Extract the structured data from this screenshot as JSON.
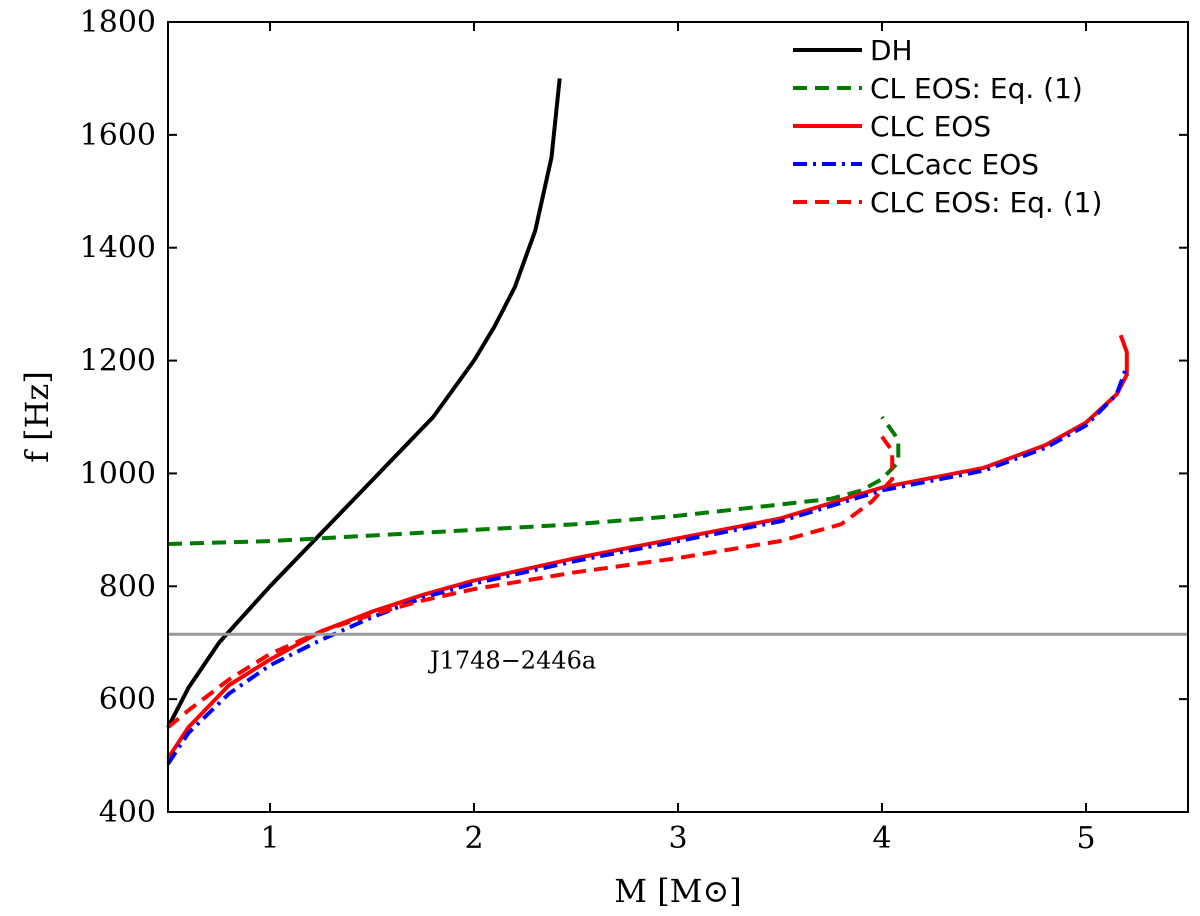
{
  "chart_data": {
    "type": "line",
    "title": "",
    "xlabel": "M [M⊙]",
    "ylabel": "f [Hz]",
    "xlim": [
      0.5,
      5.5
    ],
    "ylim": [
      400,
      1800
    ],
    "xticks": [
      1,
      2,
      3,
      4,
      5
    ],
    "yticks": [
      400,
      600,
      800,
      1000,
      1200,
      1400,
      1600,
      1800
    ],
    "legend_position": "top-right",
    "series": [
      {
        "name": "DH",
        "color": "#000000",
        "style": "solid",
        "points": [
          [
            0.5,
            550
          ],
          [
            0.6,
            620
          ],
          [
            0.75,
            700
          ],
          [
            0.9,
            760
          ],
          [
            1.0,
            800
          ],
          [
            1.2,
            875
          ],
          [
            1.4,
            950
          ],
          [
            1.6,
            1025
          ],
          [
            1.8,
            1100
          ],
          [
            2.0,
            1200
          ],
          [
            2.1,
            1260
          ],
          [
            2.2,
            1330
          ],
          [
            2.3,
            1430
          ],
          [
            2.38,
            1560
          ],
          [
            2.42,
            1700
          ]
        ]
      },
      {
        "name": "CL EOS: Eq. (1)",
        "color": "#007a00",
        "style": "dashed",
        "points": [
          [
            0.5,
            875
          ],
          [
            1.0,
            880
          ],
          [
            1.5,
            890
          ],
          [
            2.0,
            900
          ],
          [
            2.5,
            910
          ],
          [
            3.0,
            925
          ],
          [
            3.5,
            945
          ],
          [
            3.75,
            955
          ],
          [
            3.9,
            970
          ],
          [
            4.0,
            990
          ],
          [
            4.08,
            1020
          ],
          [
            4.08,
            1060
          ],
          [
            4.0,
            1100
          ]
        ]
      },
      {
        "name": "CLC EOS",
        "color": "#ff0000",
        "style": "solid",
        "points": [
          [
            0.5,
            495
          ],
          [
            0.6,
            550
          ],
          [
            0.8,
            625
          ],
          [
            1.0,
            670
          ],
          [
            1.25,
            720
          ],
          [
            1.5,
            755
          ],
          [
            1.75,
            785
          ],
          [
            2.0,
            810
          ],
          [
            2.5,
            850
          ],
          [
            3.0,
            885
          ],
          [
            3.5,
            920
          ],
          [
            4.0,
            975
          ],
          [
            4.5,
            1010
          ],
          [
            4.8,
            1050
          ],
          [
            5.0,
            1090
          ],
          [
            5.15,
            1140
          ],
          [
            5.2,
            1175
          ],
          [
            5.2,
            1215
          ],
          [
            5.17,
            1245
          ]
        ]
      },
      {
        "name": "CLCacc EOS",
        "color": "#0000ff",
        "style": "dashdot",
        "points": [
          [
            0.5,
            485
          ],
          [
            0.6,
            540
          ],
          [
            0.8,
            610
          ],
          [
            1.0,
            660
          ],
          [
            1.25,
            705
          ],
          [
            1.5,
            745
          ],
          [
            1.75,
            780
          ],
          [
            2.0,
            805
          ],
          [
            2.5,
            845
          ],
          [
            3.0,
            880
          ],
          [
            3.5,
            915
          ],
          [
            4.0,
            970
          ],
          [
            4.5,
            1005
          ],
          [
            4.8,
            1045
          ],
          [
            5.0,
            1085
          ],
          [
            5.15,
            1140
          ],
          [
            5.2,
            1190
          ]
        ]
      },
      {
        "name": "CLC EOS: Eq. (1)",
        "color": "#ff0000",
        "style": "dashed",
        "points": [
          [
            0.5,
            550
          ],
          [
            0.6,
            580
          ],
          [
            0.8,
            635
          ],
          [
            1.0,
            680
          ],
          [
            1.25,
            720
          ],
          [
            1.5,
            750
          ],
          [
            1.75,
            775
          ],
          [
            2.0,
            795
          ],
          [
            2.5,
            825
          ],
          [
            3.0,
            850
          ],
          [
            3.5,
            880
          ],
          [
            3.8,
            910
          ],
          [
            3.95,
            950
          ],
          [
            4.05,
            990
          ],
          [
            4.05,
            1040
          ],
          [
            3.98,
            1075
          ]
        ]
      }
    ],
    "hlines": [
      {
        "y": 715,
        "color": "#999999",
        "label": "J1748−2446a"
      }
    ]
  }
}
